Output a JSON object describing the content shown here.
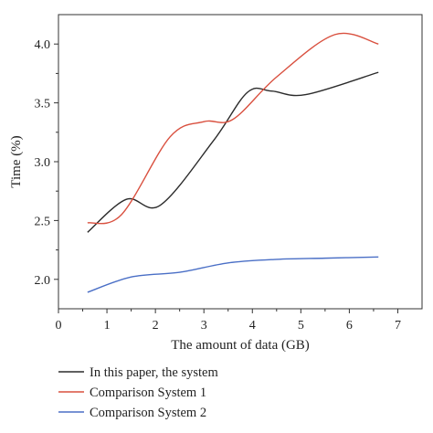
{
  "chart_data": {
    "type": "line",
    "xlabel": "The amount of data (GB)",
    "ylabel": "Time (%)",
    "xlim": [
      0,
      7.5
    ],
    "ylim": [
      1.75,
      4.25
    ],
    "xticks": [
      0,
      1,
      2,
      3,
      4,
      5,
      6,
      7
    ],
    "yticks": [
      2.0,
      2.5,
      3.0,
      3.5,
      4.0
    ],
    "xtick_labels": [
      "0",
      "1",
      "2",
      "3",
      "4",
      "5",
      "6",
      "7"
    ],
    "ytick_labels": [
      "2.0",
      "2.5",
      "3.0",
      "3.5",
      "4.0"
    ],
    "grid": false,
    "legend_position": "below",
    "series": [
      {
        "name": "In this paper, the system",
        "color": "#2b2b2b",
        "x": [
          0.6,
          1.4,
          2.1,
          3.2,
          3.9,
          4.4,
          5.1,
          6.6
        ],
        "y": [
          2.4,
          2.68,
          2.63,
          3.18,
          3.59,
          3.6,
          3.57,
          3.76
        ]
      },
      {
        "name": "Comparison System 1",
        "color": "#d9503f",
        "x": [
          0.6,
          1.3,
          2.3,
          3.0,
          3.6,
          4.5,
          5.7,
          6.6
        ],
        "y": [
          2.48,
          2.55,
          3.21,
          3.34,
          3.36,
          3.72,
          4.08,
          4.0
        ]
      },
      {
        "name": "Comparison System 2",
        "color": "#4a6fc6",
        "x": [
          0.6,
          1.5,
          2.5,
          3.5,
          4.5,
          5.5,
          6.6
        ],
        "y": [
          1.89,
          2.02,
          2.06,
          2.14,
          2.17,
          2.18,
          2.19
        ]
      }
    ]
  }
}
